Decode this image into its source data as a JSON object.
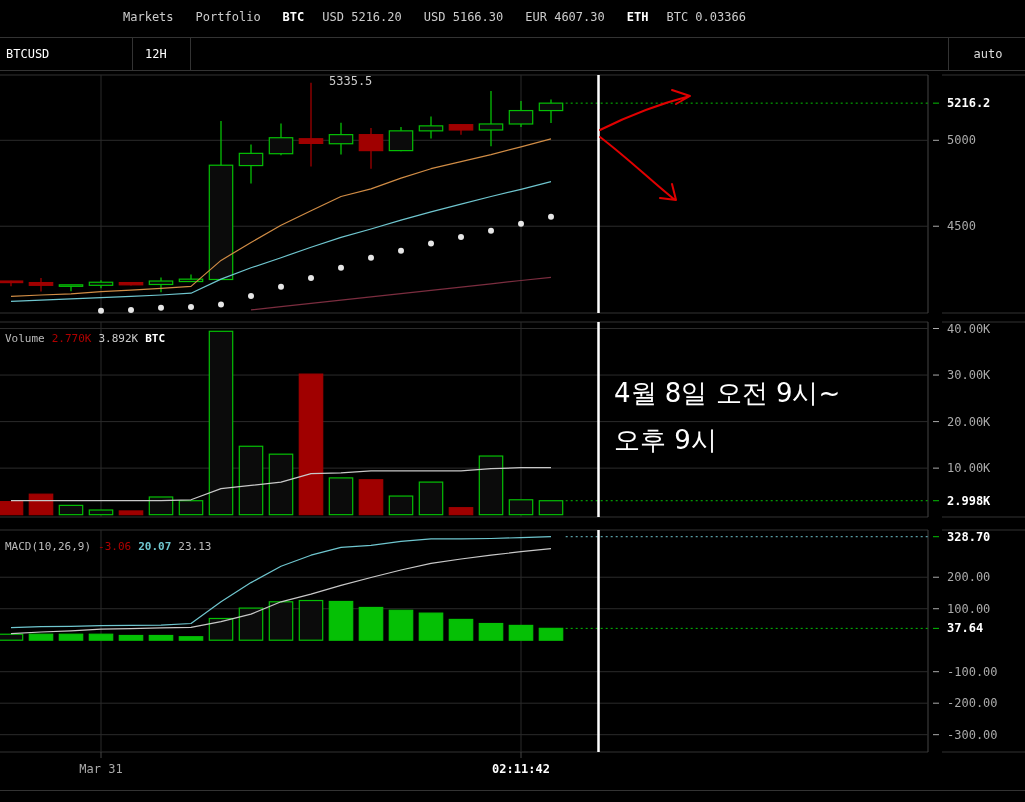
{
  "chart_data": [
    {
      "type": "other",
      "title": "BTCUSD",
      "subtitle": "12H",
      "annotations": [
        "Markets",
        "Portfolio",
        "BTC",
        "USD 5216.20",
        "USD 5166.30",
        "EUR 4607.30",
        "ETH",
        "BTC 0.03366",
        "auto"
      ]
    },
    {
      "type": "candlestick",
      "x": [
        "--03-29T12:00",
        "--03-30T00:00",
        "--03-30T12:00",
        "--03-31T00:00",
        "--03-31T12:00",
        "--04-01T00:00",
        "--04-01T12:00",
        "--04-02T00:00",
        "--04-02T12:00",
        "--04-03T00:00",
        "--04-03T12:00",
        "--04-04T00:00",
        "--04-04T12:00",
        "--04-05T00:00",
        "--04-05T12:00",
        "--04-06T00:00",
        "--04-06T12:00",
        "--04-07T00:00",
        "--04-07T12:00"
      ],
      "ohlc": [
        [
          4181,
          4183,
          4150,
          4172
        ],
        [
          4172,
          4199,
          4120,
          4156
        ],
        [
          4152,
          4160,
          4121,
          4159
        ],
        [
          4156,
          4185,
          4139,
          4174
        ],
        [
          4172,
          4175,
          4155,
          4159
        ],
        [
          4161,
          4201,
          4116,
          4181
        ],
        [
          4178,
          4219,
          4176,
          4192
        ],
        [
          4190,
          5113,
          4188,
          4855
        ],
        [
          4853,
          4976,
          4748,
          4924
        ],
        [
          4922,
          5098,
          4913,
          5015
        ],
        [
          5009,
          5335.5,
          4848,
          4982
        ],
        [
          4980,
          5102,
          4917,
          5033
        ],
        [
          5033,
          5071,
          4835,
          4940
        ],
        [
          4940,
          5078,
          4936,
          5055
        ],
        [
          5055,
          5138,
          5011,
          5084
        ],
        [
          5091,
          5093,
          5033,
          5060
        ],
        [
          5060,
          5287,
          4966,
          5095
        ],
        [
          5095,
          5229,
          5078,
          5173
        ],
        [
          5173,
          5238,
          5100,
          5216.2
        ]
      ],
      "colors": [
        "#a00000",
        "#a00000",
        "#05c005",
        "#05c005",
        "#a00000",
        "#05c005",
        "#05c005",
        "#05c005",
        "#05c005",
        "#05c005",
        "#a00000",
        "#05c005",
        "#a00000",
        "#05c005",
        "#05c005",
        "#a00000",
        "#05c005",
        "#05c005",
        "#05c005"
      ],
      "series": [
        {
          "type": "line",
          "color": "#d08c45",
          "values": [
            4092,
            4100,
            4107,
            4119,
            4128,
            4138,
            4150,
            4301,
            4405,
            4506,
            4590,
            4673,
            4717,
            4780,
            4835,
            4876,
            4917,
            4962,
            5009
          ]
        },
        {
          "type": "line",
          "color": "#6fc6cf",
          "values": [
            4063,
            4070,
            4077,
            4084,
            4092,
            4100,
            4110,
            4192,
            4258,
            4317,
            4378,
            4435,
            4484,
            4535,
            4584,
            4628,
            4673,
            4715,
            4759
          ]
        },
        {
          "type": "scatter",
          "color": "#e6e6e6",
          "marker": "circle",
          "x": [
            "--03-31T00:00",
            "--03-31T12:00",
            "--04-01T00:00",
            "--04-01T12:00",
            "--04-02T00:00",
            "--04-02T12:00",
            "--04-03T00:00",
            "--04-03T12:00",
            "--04-04T00:00",
            "--04-04T12:00",
            "--04-05T00:00",
            "--04-05T12:00",
            "--04-06T00:00",
            "--04-06T12:00",
            "--04-07T00:00",
            "--04-07T12:00"
          ],
          "values": [
            4008,
            4013,
            4025,
            4030,
            4045,
            4094,
            4148,
            4199,
            4259,
            4317,
            4357,
            4399,
            4437,
            4473,
            4515,
            4555
          ]
        },
        {
          "type": "line",
          "color": "#7b2d3f",
          "x": [
            "--04-02T12:00",
            "--04-03T00:00",
            "--04-03T12:00",
            "--04-04T00:00",
            "--04-04T12:00",
            "--04-05T00:00",
            "--04-05T12:00",
            "--04-06T00:00",
            "--04-06T12:00",
            "--04-07T00:00",
            "--04-07T12:00"
          ],
          "values": [
            4013,
            4032,
            4051,
            4070,
            4089,
            4108,
            4127,
            4146,
            4165,
            4184,
            4203
          ]
        }
      ],
      "xlim": [
        "--03-29T07:36",
        "--04-13T18:48"
      ],
      "xticks": [
        {
          "value": "--03-31T00:00",
          "label": null
        },
        {
          "value": "--04-07T00:00",
          "label": null
        }
      ],
      "ylim": [
        3995,
        5380
      ],
      "yticks": [
        4500,
        5000,
        5216.2
      ],
      "tick_labels": "y",
      "grid": true,
      "ref_lines": [
        {
          "axis": "y",
          "value": 5216.2,
          "color": "#05c005",
          "line_style": "dotted"
        },
        {
          "axis": "x",
          "value": "--04-08T07:00",
          "color": "#ffffff"
        }
      ],
      "annotations": [
        {
          "text": "5335.5",
          "x": "--04-03T12:00",
          "y": 5335.5
        }
      ]
    },
    {
      "type": "bar",
      "x": [
        "--03-29T12:00",
        "--03-30T00:00",
        "--03-30T12:00",
        "--03-31T00:00",
        "--03-31T12:00",
        "--04-01T00:00",
        "--04-01T12:00",
        "--04-02T00:00",
        "--04-02T12:00",
        "--04-03T00:00",
        "--04-03T12:00",
        "--04-04T00:00",
        "--04-04T12:00",
        "--04-05T00:00",
        "--04-05T12:00",
        "--04-06T00:00",
        "--04-06T12:00",
        "--04-07T00:00",
        "--04-07T12:00"
      ],
      "series": [
        {
          "type": "bar",
          "colors": [
            "#a00000",
            "#a00000",
            "#05c005",
            "#05c005",
            "#a00000",
            "#05c005",
            "#05c005",
            "#05c005",
            "#05c005",
            "#05c005",
            "#a00000",
            "#05c005",
            "#a00000",
            "#05c005",
            "#05c005",
            "#a00000",
            "#05c005",
            "#05c005",
            "#05c005"
          ],
          "values": [
            2800,
            4400,
            2000,
            1000,
            800,
            3800,
            3000,
            39400,
            14700,
            13000,
            30200,
            7900,
            7500,
            4000,
            7000,
            1500,
            12600,
            3200,
            2998
          ]
        },
        {
          "type": "line",
          "color": "#c8c8c8",
          "values": [
            3000,
            3000,
            3000,
            3000,
            3000,
            3000,
            3200,
            5600,
            6300,
            7000,
            8800,
            9000,
            9400,
            9400,
            9400,
            9400,
            9900,
            10100,
            10100
          ]
        }
      ],
      "xlim": [
        "--03-29T07:36",
        "--04-13T18:48"
      ],
      "xticks": [
        {
          "value": "--03-31T00:00",
          "label": null
        },
        {
          "value": "--04-07T00:00",
          "label": null
        }
      ],
      "ylim": [
        -500,
        41400
      ],
      "yticks": [
        {
          "value": 2998,
          "label": "2.998K"
        },
        {
          "value": 10000,
          "label": "10.00K"
        },
        {
          "value": 20000,
          "label": "20.00K"
        },
        {
          "value": 30000,
          "label": "30.00K"
        },
        {
          "value": 40000,
          "label": "40.00K"
        }
      ],
      "tick_labels": "y",
      "grid": true,
      "ref_lines": [
        {
          "axis": "y",
          "value": 2998,
          "color": "#05c005",
          "line_style": "dotted"
        },
        {
          "axis": "x",
          "value": "--04-08T07:00",
          "color": "#ffffff"
        }
      ],
      "annotations": [
        "Volume",
        "2.770K",
        "3.892K",
        "BTC",
        "4월 8일 오전 9시~",
        "오후 9시"
      ]
    },
    {
      "type": "bar",
      "x": [
        "--03-29T12:00",
        "--03-30T00:00",
        "--03-30T12:00",
        "--03-31T00:00",
        "--03-31T12:00",
        "--04-01T00:00",
        "--04-01T12:00",
        "--04-02T00:00",
        "--04-02T12:00",
        "--04-03T00:00",
        "--04-03T12:00",
        "--04-04T00:00",
        "--04-04T12:00",
        "--04-05T00:00",
        "--04-05T12:00",
        "--04-06T00:00",
        "--04-06T12:00",
        "--04-07T00:00",
        "--04-07T12:00"
      ],
      "series": [
        {
          "type": "bar",
          "color": "#05c005",
          "values": [
            19,
            19,
            19,
            19,
            15,
            15,
            11,
            69,
            102,
            122,
            126,
            123,
            104,
            95,
            86,
            66,
            53,
            47,
            37.64
          ]
        },
        {
          "type": "line",
          "color": "#6fc6cf",
          "values": [
            40,
            43,
            44,
            46,
            47,
            48,
            53,
            122,
            183,
            235,
            270,
            295,
            301,
            314,
            322,
            322,
            323,
            326,
            328.7
          ]
        },
        {
          "type": "line",
          "color": "#c8c8c8",
          "values": [
            21,
            26,
            30,
            35,
            37,
            39,
            41,
            59,
            83,
            122,
            146,
            174,
            199,
            223,
            244,
            258,
            270,
            281,
            291
          ]
        }
      ],
      "xlim": [
        "--03-29T07:36",
        "--04-13T18:48"
      ],
      "xticks": [
        {
          "value": "--03-31T00:00",
          "label": "Mar 31"
        },
        {
          "value": "--04-07T00:00",
          "label": "02:11:42"
        }
      ],
      "ylim": [
        -355,
        350
      ],
      "yticks": [
        {
          "value": -300,
          "label": "-300.00"
        },
        {
          "value": -200,
          "label": "-200.00"
        },
        {
          "value": -100,
          "label": "-100.00"
        },
        {
          "value": 37.64,
          "label": "37.64"
        },
        {
          "value": 100,
          "label": "100.00"
        },
        {
          "value": 200,
          "label": "200.00"
        },
        {
          "value": 328.7,
          "label": "328.70"
        }
      ],
      "grid": true,
      "ref_lines": [
        {
          "axis": "y",
          "value": 328.7,
          "color": "#6fc6cf",
          "line_style": "dotted"
        },
        {
          "axis": "y",
          "value": 37.64,
          "color": "#05c005",
          "line_style": "dotted"
        },
        {
          "axis": "x",
          "value": "--04-08T07:00",
          "color": "#ffffff"
        }
      ],
      "annotations": [
        "MACD(10,26,9)",
        "-3.06",
        "20.07",
        "23.13"
      ]
    }
  ]
}
